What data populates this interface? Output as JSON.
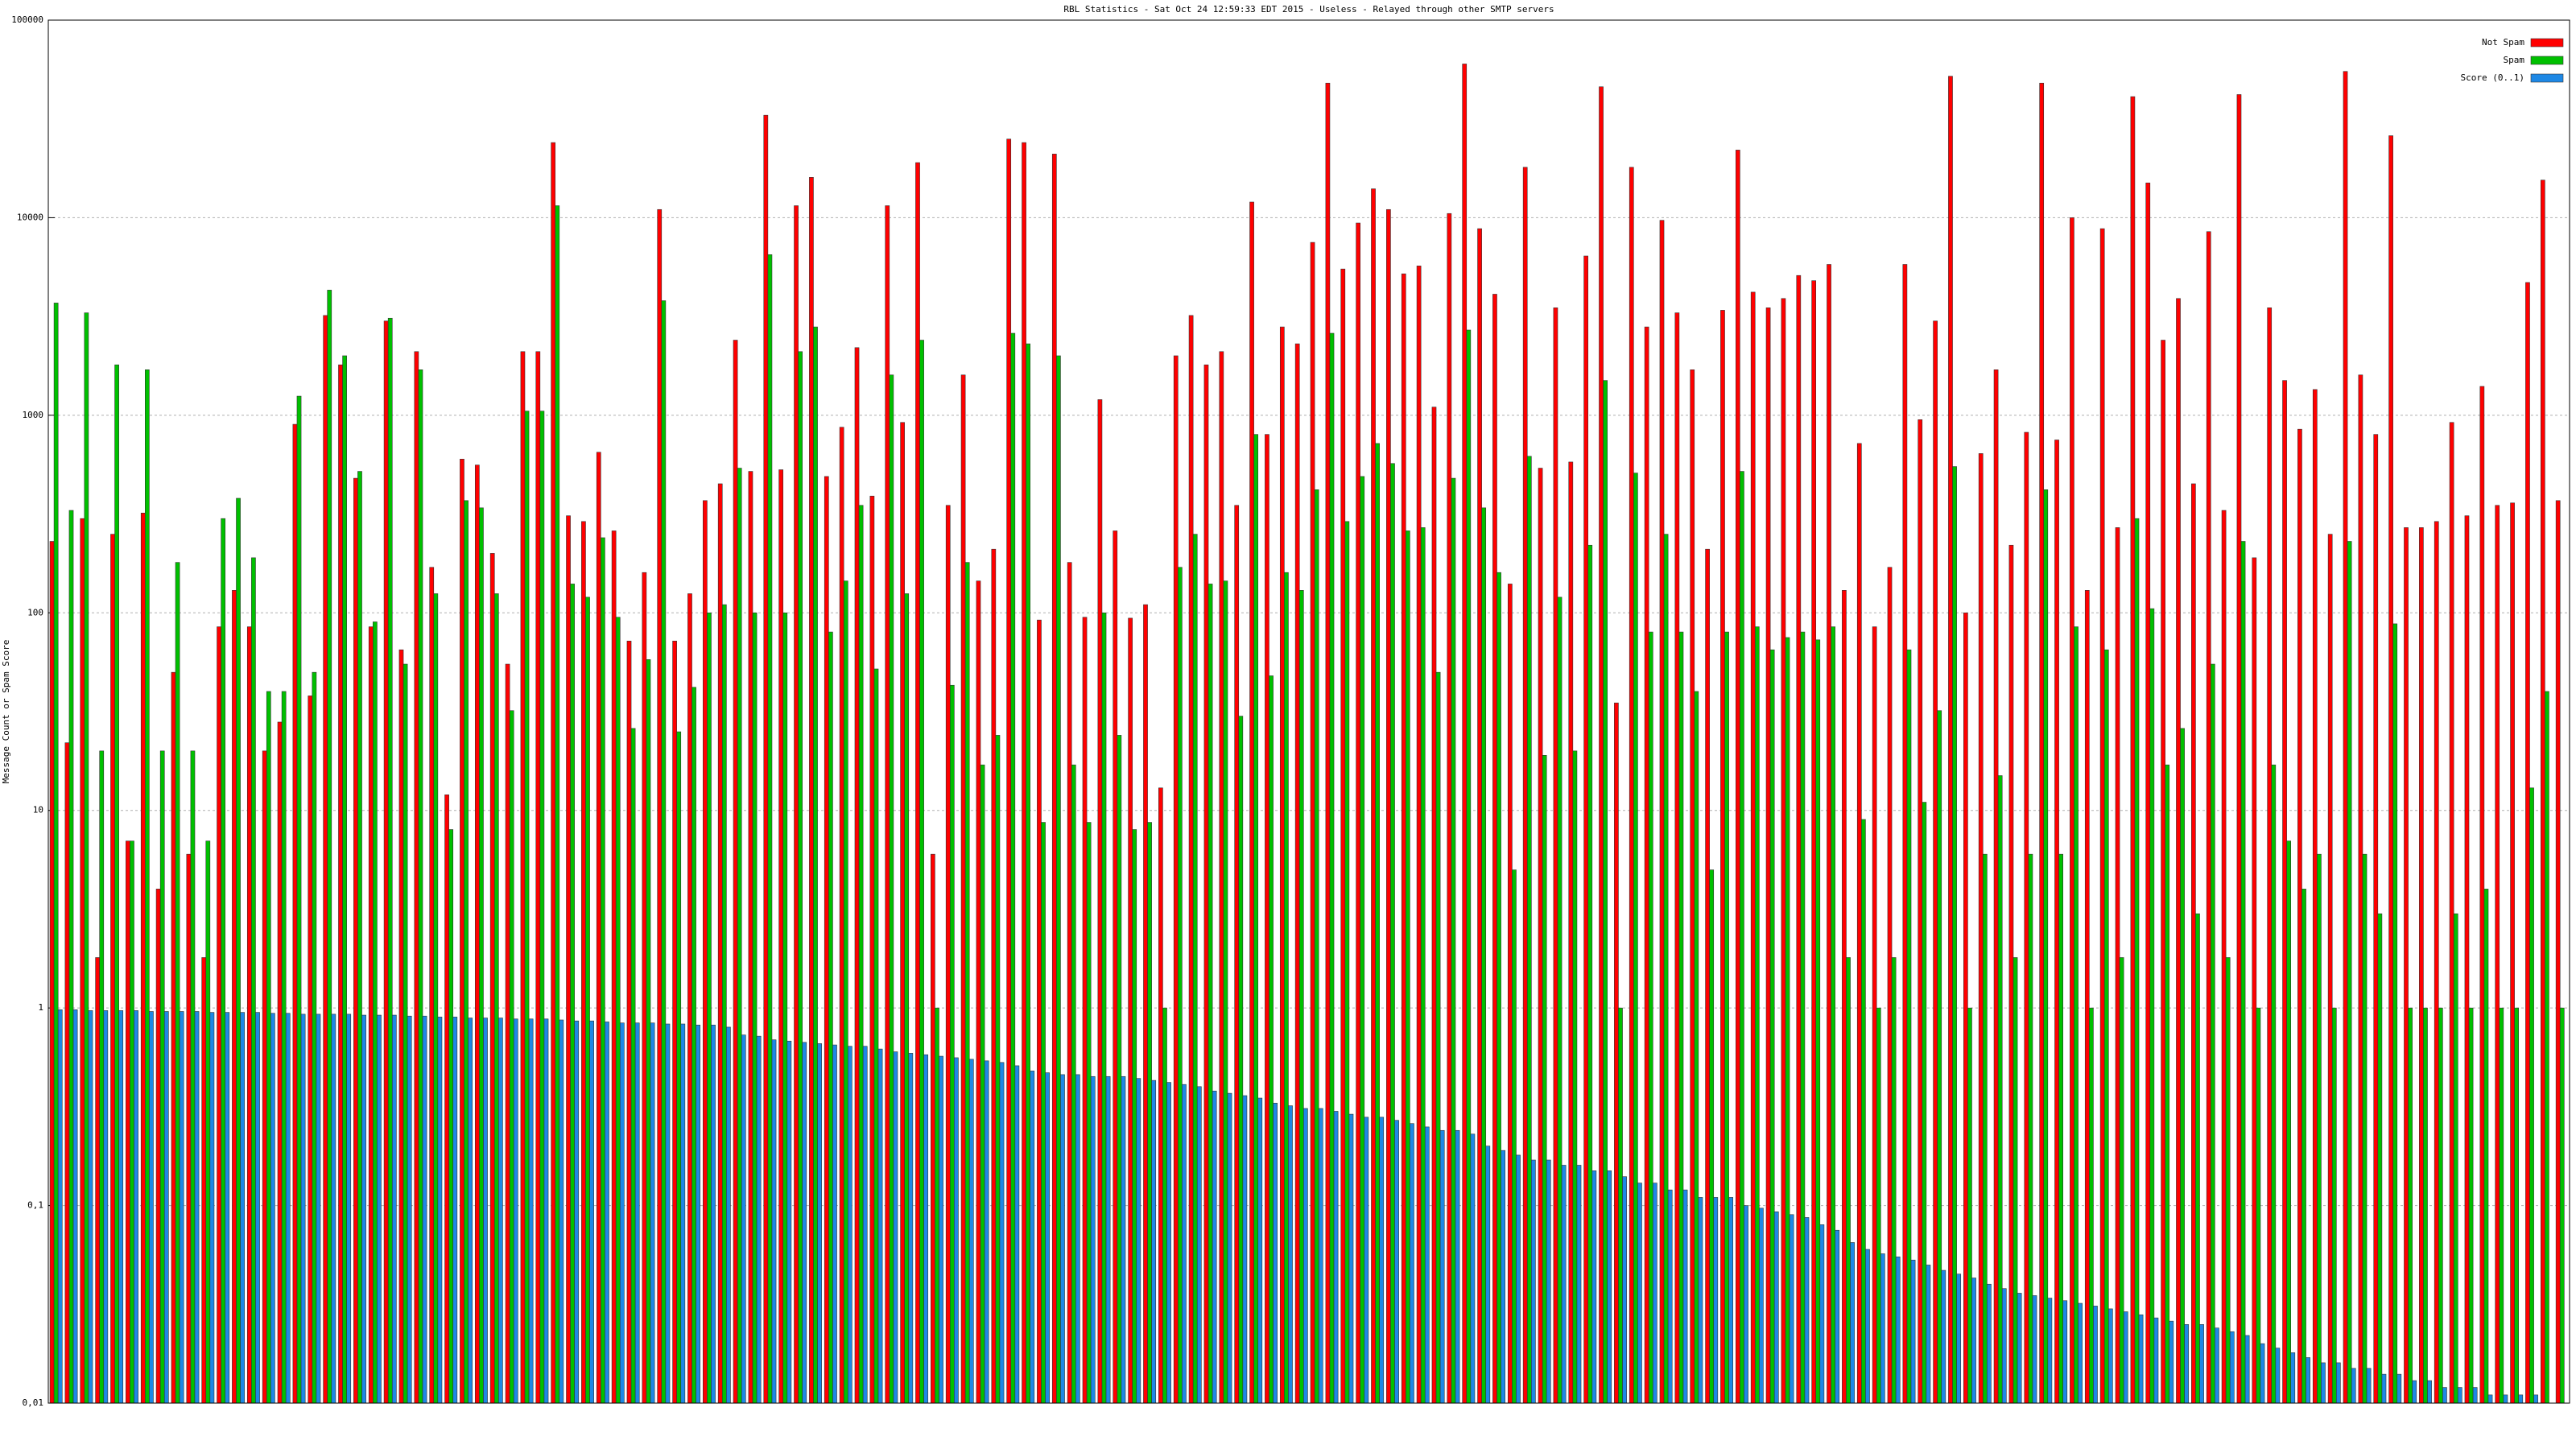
{
  "chart_data": {
    "type": "bar",
    "log_scale": true,
    "grid": true,
    "legend": "top-right",
    "title": "RBL Statistics - Sat Oct 24 12:59:33 EDT 2015 - Useless - Relayed through other SMTP servers",
    "y_label": "Message Count or Spam Score",
    "ylim": [
      0.01,
      100000
    ],
    "yticks": [
      {
        "value": 0.01,
        "label": "0,01"
      },
      {
        "value": 0.1,
        "label": "0,1"
      },
      1,
      10,
      100,
      1000,
      10000,
      100000
    ],
    "categories": [
      null,
      null,
      null,
      null,
      null,
      null,
      null,
      null,
      null,
      null,
      null,
      null,
      null,
      null,
      null,
      null,
      null,
      null,
      null,
      null,
      null,
      null,
      null,
      null,
      null,
      null,
      null,
      null,
      null,
      null,
      null,
      null,
      null,
      null,
      null,
      null,
      null,
      null,
      null,
      null,
      null,
      null,
      null,
      null,
      null,
      null,
      null,
      null,
      null,
      null,
      null,
      null,
      null,
      null,
      null,
      null,
      null,
      null,
      null,
      null,
      null,
      null,
      null,
      null,
      null,
      null,
      null,
      null,
      null,
      null,
      null,
      null,
      null,
      null,
      null,
      null,
      null,
      null,
      null,
      null,
      null,
      null,
      null,
      null,
      null,
      null,
      null,
      null,
      null,
      null,
      null,
      null,
      null,
      null,
      null,
      null,
      null,
      null,
      null,
      null,
      null,
      null,
      null,
      null,
      null,
      null,
      null,
      null,
      null,
      null,
      null,
      null,
      null,
      null,
      null,
      null,
      null,
      null,
      null,
      null,
      null,
      null,
      null,
      null,
      null,
      null,
      null,
      null,
      null,
      null,
      null,
      null,
      null,
      null,
      null,
      null,
      null,
      null,
      null,
      null,
      null,
      null,
      null,
      null,
      null,
      null,
      null,
      null,
      null,
      null,
      null,
      null,
      null,
      null,
      null,
      null,
      null,
      null,
      null,
      null,
      null,
      null,
      null,
      null,
      null,
      null
    ],
    "series": [
      {
        "name": "Not Spam",
        "color": "#ff0000",
        "values": [
          230,
          22,
          300,
          1.8,
          250,
          7,
          320,
          4,
          50,
          6,
          1.8,
          85,
          130,
          85,
          20,
          28,
          900,
          38,
          3200,
          1800,
          480,
          85,
          3000,
          65,
          2100,
          170,
          12,
          600,
          560,
          200,
          55,
          2100,
          2100,
          24000,
          310,
          290,
          650,
          260,
          72,
          160,
          11000,
          72,
          125,
          370,
          450,
          2400,
          520,
          33000,
          530,
          11500,
          16000,
          490,
          870,
          2200,
          390,
          11500,
          920,
          19000,
          6,
          350,
          1600,
          145,
          210,
          25000,
          24000,
          92,
          21000,
          180,
          95,
          1200,
          260,
          94,
          110,
          13,
          2000,
          3200,
          1800,
          2100,
          350,
          12000,
          800,
          2800,
          2300,
          7500,
          48000,
          5500,
          9400,
          14000,
          11000,
          5200,
          5700,
          1100,
          10500,
          60000,
          8800,
          4100,
          140,
          18000,
          540,
          3500,
          580,
          6400,
          46000,
          35,
          18000,
          2800,
          9700,
          3300,
          1700,
          210,
          3400,
          22000,
          4200,
          3500,
          3900,
          5100,
          4800,
          5800,
          130,
          720,
          85,
          170,
          5800,
          950,
          3000,
          52000,
          100,
          640,
          1700,
          220,
          820,
          48000,
          750,
          10000,
          130,
          8800,
          270,
          41000,
          15000,
          2400,
          3900,
          450,
          8500,
          330,
          42000,
          190,
          3500,
          1500,
          850,
          1350,
          250,
          55000,
          1600,
          800,
          26000,
          270,
          270,
          290,
          920,
          310,
          1400,
          350,
          360,
          4700,
          15500,
          370
        ]
      },
      {
        "name": "Spam",
        "color": "#00c000",
        "values": [
          3700,
          330,
          3300,
          20,
          1800,
          7,
          1700,
          20,
          180,
          20,
          7,
          300,
          380,
          190,
          40,
          40,
          1250,
          50,
          4300,
          2000,
          520,
          90,
          3100,
          55,
          1700,
          125,
          8,
          370,
          340,
          125,
          32,
          1050,
          1050,
          11500,
          140,
          120,
          240,
          95,
          26,
          58,
          3800,
          25,
          42,
          100,
          110,
          540,
          100,
          6500,
          100,
          2100,
          2800,
          80,
          145,
          350,
          52,
          1600,
          125,
          2400,
          1,
          43,
          180,
          17,
          24,
          2600,
          2300,
          8.7,
          2000,
          17,
          8.7,
          100,
          24,
          8,
          8.7,
          1,
          170,
          250,
          140,
          145,
          30,
          800,
          48,
          160,
          130,
          420,
          2600,
          290,
          490,
          720,
          570,
          260,
          270,
          50,
          480,
          2700,
          340,
          160,
          5,
          620,
          19,
          120,
          20,
          220,
          1500,
          1,
          510,
          80,
          250,
          80,
          40,
          5,
          80,
          520,
          85,
          65,
          75,
          80,
          73,
          85,
          1.8,
          9,
          1,
          1.8,
          65,
          11,
          32,
          550,
          1,
          6,
          15,
          1.8,
          6,
          420,
          6,
          85,
          1,
          65,
          1.8,
          300,
          105,
          17,
          26,
          3,
          55,
          1.8,
          230,
          1,
          17,
          7,
          4,
          6,
          1,
          230,
          6,
          3,
          88,
          1,
          1,
          1,
          3,
          1,
          4,
          1,
          1,
          13,
          40,
          1
        ]
      },
      {
        "name": "Score (0..1)",
        "color": "#1e88e5",
        "values": [
          0.98,
          0.98,
          0.97,
          0.97,
          0.97,
          0.97,
          0.96,
          0.96,
          0.96,
          0.96,
          0.95,
          0.95,
          0.95,
          0.95,
          0.94,
          0.94,
          0.93,
          0.93,
          0.93,
          0.93,
          0.92,
          0.92,
          0.92,
          0.91,
          0.91,
          0.9,
          0.9,
          0.89,
          0.89,
          0.89,
          0.88,
          0.88,
          0.88,
          0.87,
          0.86,
          0.86,
          0.85,
          0.84,
          0.84,
          0.84,
          0.83,
          0.83,
          0.82,
          0.82,
          0.8,
          0.73,
          0.72,
          0.69,
          0.68,
          0.67,
          0.66,
          0.65,
          0.64,
          0.64,
          0.62,
          0.6,
          0.59,
          0.58,
          0.57,
          0.56,
          0.55,
          0.54,
          0.53,
          0.51,
          0.48,
          0.47,
          0.46,
          0.46,
          0.45,
          0.45,
          0.45,
          0.44,
          0.43,
          0.42,
          0.41,
          0.4,
          0.38,
          0.37,
          0.36,
          0.35,
          0.33,
          0.32,
          0.31,
          0.31,
          0.3,
          0.29,
          0.28,
          0.28,
          0.27,
          0.26,
          0.25,
          0.24,
          0.24,
          0.23,
          0.2,
          0.19,
          0.18,
          0.17,
          0.17,
          0.16,
          0.16,
          0.15,
          0.15,
          0.14,
          0.13,
          0.13,
          0.12,
          0.12,
          0.11,
          0.11,
          0.11,
          0.1,
          0.097,
          0.093,
          0.09,
          0.087,
          0.08,
          0.075,
          0.065,
          0.06,
          0.057,
          0.055,
          0.053,
          0.05,
          0.047,
          0.045,
          0.043,
          0.04,
          0.038,
          0.036,
          0.035,
          0.034,
          0.033,
          0.032,
          0.031,
          0.03,
          0.029,
          0.028,
          0.027,
          0.026,
          0.025,
          0.025,
          0.024,
          0.023,
          0.022,
          0.02,
          0.019,
          0.018,
          0.017,
          0.016,
          0.016,
          0.015,
          0.015,
          0.014,
          0.014,
          0.013,
          0.013,
          0.012,
          0.012,
          0.012,
          0.011,
          0.011,
          0.011,
          0.011,
          0.01,
          0.01
        ]
      }
    ]
  }
}
